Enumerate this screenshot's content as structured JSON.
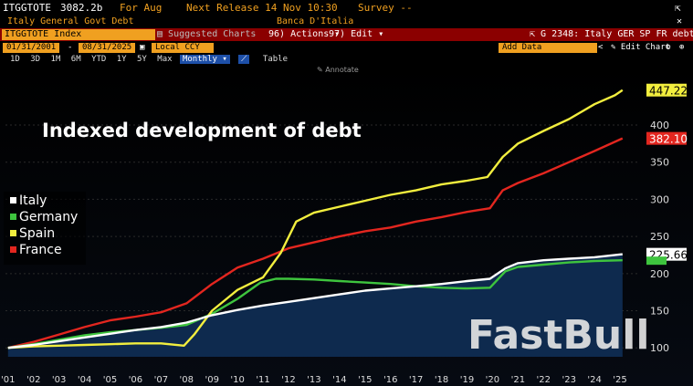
{
  "header": {
    "ticker": "ITGGTOTE",
    "value": "3082.2b",
    "for_label": "For Aug",
    "next_release": "Next Release 14 Nov 10:30",
    "survey": "Survey --",
    "description": "Italy General Govt Debt",
    "source": "Banca D'Italia",
    "close_glyph": "✕",
    "share_glyph": "⇱"
  },
  "toolbar": {
    "index_field": "ITGGTOTE Index",
    "suggested": "Suggested Charts",
    "actions": "Actions",
    "edit": "Edit",
    "graph_title": "G 2348: Italy GER SP FR debt",
    "start_date": "01/31/2001",
    "end_date": "08/31/2025",
    "currency": "Local CCY",
    "add_data": "Add Data",
    "edit_chart": "Edit Chart",
    "date_sep": "-"
  },
  "periods": [
    "1D",
    "3D",
    "1M",
    "6M",
    "YTD",
    "1Y",
    "5Y",
    "Max"
  ],
  "frequency": "Monthly",
  "table_tab": "Table",
  "annotate": "Annotate",
  "watermark": "FastBull",
  "chart_data": {
    "type": "line",
    "title": "Indexed development of debt",
    "xlabel": "",
    "ylabel": "",
    "x_ticks": [
      "'01",
      "'02",
      "'03",
      "'04",
      "'05",
      "'06",
      "'07",
      "'08",
      "'09",
      "'10",
      "'11",
      "'12",
      "'13",
      "'14",
      "'15",
      "'16",
      "'17",
      "'18",
      "'19",
      "'20",
      "'21",
      "'22",
      "'23",
      "'24",
      "'25"
    ],
    "y_ticks": [
      100,
      150,
      200,
      250,
      300,
      350,
      400
    ],
    "ylim": [
      88,
      470
    ],
    "xlim": [
      2000.9,
      2025.75
    ],
    "legend_position": "left",
    "series": [
      {
        "name": "Italy",
        "color": "#ffffff",
        "last_value": "225.66",
        "x": [
          2001,
          2002,
          2003,
          2004,
          2005,
          2006,
          2007,
          2008,
          2009,
          2010,
          2011,
          2012,
          2013,
          2014,
          2015,
          2016,
          2017,
          2018,
          2019,
          2019.9,
          2020.5,
          2021,
          2022,
          2023,
          2024,
          2025.1
        ],
        "y": [
          100,
          104,
          109,
          114,
          119,
          124,
          128,
          134,
          144,
          151,
          157,
          162,
          167,
          172,
          177,
          180,
          183,
          186,
          190,
          193,
          207,
          214,
          218,
          220,
          222,
          226
        ]
      },
      {
        "name": "Germany",
        "color": "#3ec43e",
        "last_value": "",
        "x": [
          2001,
          2002,
          2003,
          2004,
          2005,
          2006,
          2007,
          2008,
          2009,
          2010,
          2010.9,
          2011.5,
          2012,
          2013,
          2014,
          2015,
          2016,
          2017,
          2018,
          2019,
          2019.9,
          2020.5,
          2021,
          2022,
          2023,
          2024,
          2025.1
        ],
        "y": [
          100,
          105,
          111,
          117,
          121,
          124,
          127,
          131,
          146,
          166,
          188,
          193,
          193,
          192,
          190,
          188,
          186,
          183,
          181,
          180,
          181,
          203,
          209,
          212,
          215,
          217,
          218
        ]
      },
      {
        "name": "Spain",
        "color": "#f2ee3e",
        "last_value": "447.22",
        "x": [
          2001,
          2002,
          2003,
          2004,
          2005,
          2006,
          2007,
          2007.9,
          2008.3,
          2009,
          2010,
          2011,
          2011.7,
          2012.3,
          2013,
          2014,
          2015,
          2016,
          2017,
          2018,
          2019,
          2019.8,
          2020.4,
          2021,
          2022,
          2023,
          2024,
          2024.8,
          2025.1
        ],
        "y": [
          100,
          102,
          103,
          104,
          105,
          106,
          106,
          103,
          118,
          150,
          178,
          195,
          228,
          270,
          282,
          290,
          298,
          306,
          312,
          320,
          325,
          330,
          357,
          375,
          392,
          408,
          428,
          440,
          447
        ]
      },
      {
        "name": "France",
        "color": "#e3261f",
        "last_value": "382.10",
        "x": [
          2001,
          2002,
          2003,
          2004,
          2005,
          2006,
          2007,
          2008,
          2009,
          2010,
          2011,
          2012,
          2013,
          2014,
          2015,
          2016,
          2017,
          2018,
          2019,
          2019.9,
          2020.4,
          2021,
          2022,
          2023,
          2024,
          2025.1
        ],
        "y": [
          100,
          108,
          118,
          128,
          137,
          142,
          148,
          160,
          186,
          208,
          220,
          234,
          242,
          250,
          257,
          262,
          270,
          276,
          283,
          288,
          312,
          322,
          335,
          350,
          365,
          382
        ]
      }
    ]
  },
  "colors": {
    "italy_fill": "#0e2a4e",
    "amber": "#f0a020",
    "toolbar_red": "#8b0000",
    "selected": "#1d4fa8"
  }
}
